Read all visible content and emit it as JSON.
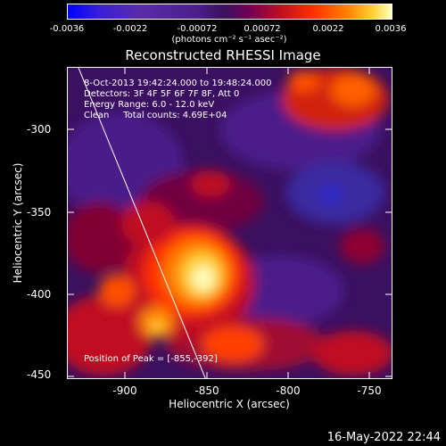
{
  "colorbar": {
    "tick_labels": [
      "-0.0036",
      "-0.0022",
      "-0.00072",
      "0.00072",
      "0.0022",
      "0.0036"
    ],
    "units": "(photons cm⁻² s⁻¹ asec⁻²)"
  },
  "plot": {
    "title": "Reconstructed RHESSI Image",
    "info_lines": [
      "8-Oct-2013 19:42:24.000 to 19:48:24.000",
      "Detectors: 3F 4F 5F 6F 7F 8F, Att 0",
      "Energy Range: 6.0 - 12.0 keV",
      "Clean     Total counts: 4.69E+04"
    ],
    "peak_text": "Position of Peak = [-855,-392]",
    "xlabel": "Heliocentric X (arcsec)",
    "ylabel": "Heliocentric Y (arcsec)",
    "x_ticks": [
      "-900",
      "-850",
      "-800",
      "-750"
    ],
    "y_ticks": [
      "-300",
      "-350",
      "-400",
      "-450"
    ]
  },
  "footer": {
    "timestamp": "16-May-2022 22:44"
  }
}
